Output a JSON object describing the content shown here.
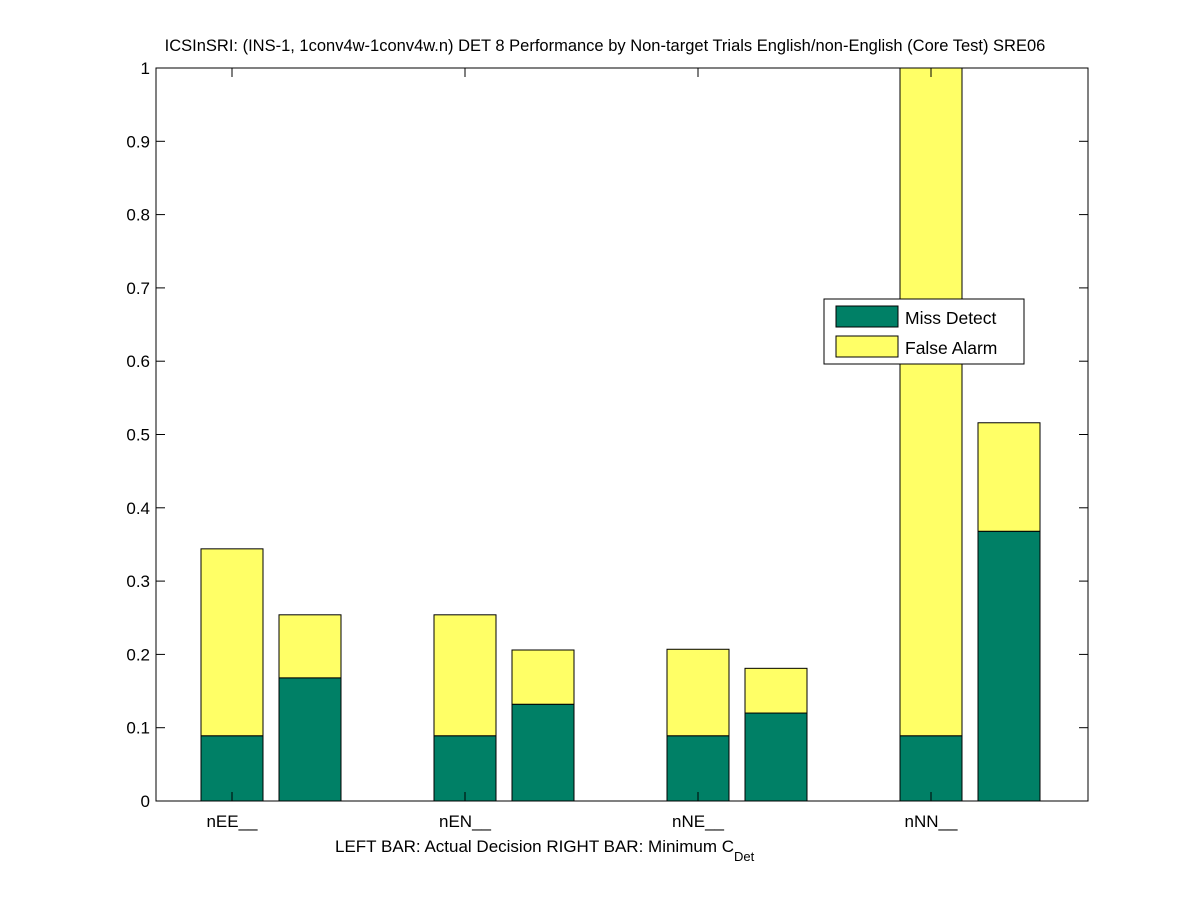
{
  "chart_data": {
    "type": "bar",
    "title": "ICSInSRI: (INS-1, 1conv4w-1conv4w.n) DET 8 Performance by Non-target Trials English/non-English (Core Test) SRE06",
    "xlabel_main": "LEFT BAR: Actual Decision      RIGHT BAR: Minimum C",
    "xlabel_sub": "Det",
    "ylabel": "",
    "categories": [
      "nEE__",
      "nEN__",
      "nNE__",
      "nNN__"
    ],
    "ylim": [
      0,
      1
    ],
    "yticks": [
      0,
      0.1,
      0.2,
      0.3,
      0.4,
      0.5,
      0.6,
      0.7,
      0.8,
      0.9,
      1
    ],
    "ytick_labels": [
      "0",
      "0.1",
      "0.2",
      "0.3",
      "0.4",
      "0.5",
      "0.6",
      "0.7",
      "0.8",
      "0.9",
      "1"
    ],
    "stacked": true,
    "bar_groups": [
      "Actual Decision",
      "Minimum C_Det"
    ],
    "series": [
      {
        "name": "Miss Detect",
        "color": "#008066",
        "actual_decision": [
          0.089,
          0.089,
          0.089,
          0.089
        ],
        "minimum_cdet": [
          0.168,
          0.132,
          0.12,
          0.368
        ]
      },
      {
        "name": "False Alarm",
        "color": "#ffff66",
        "actual_decision": [
          0.255,
          0.165,
          0.118,
          0.911
        ],
        "minimum_cdet": [
          0.086,
          0.074,
          0.061,
          0.148
        ]
      }
    ],
    "legend_position": "right",
    "grid": false
  }
}
